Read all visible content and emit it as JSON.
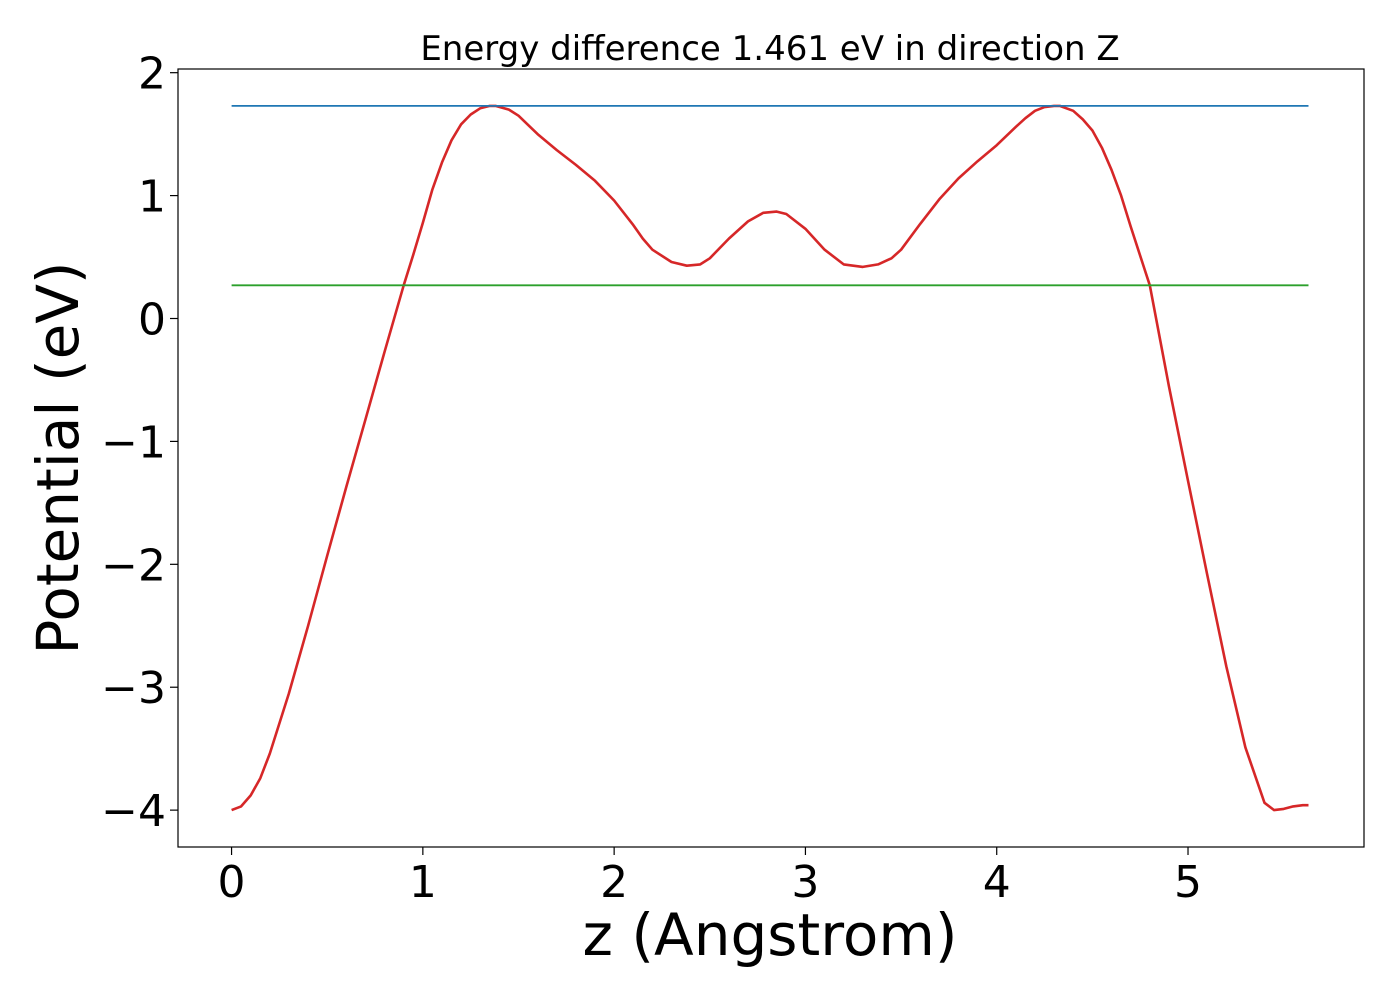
{
  "chart_data": {
    "type": "line",
    "title": "Energy difference 1.461 eV in direction Z",
    "xlabel": "z (Angstrom)",
    "ylabel": "Potential (eV)",
    "xlim": [
      -0.28,
      5.92
    ],
    "ylim": [
      -4.3,
      2.03
    ],
    "xticks": [
      0,
      1,
      2,
      3,
      4,
      5
    ],
    "xtick_labels": [
      "0",
      "1",
      "2",
      "3",
      "4",
      "5"
    ],
    "yticks": [
      -4,
      -3,
      -2,
      -1,
      0,
      1,
      2
    ],
    "ytick_labels": [
      "−4",
      "−3",
      "−2",
      "−1",
      "0",
      "1",
      "2"
    ],
    "grid": false,
    "series": [
      {
        "color": "#d62728",
        "x": [
          0,
          0.05,
          0.1,
          0.15,
          0.2,
          0.3,
          0.4,
          0.5,
          0.6,
          0.7,
          0.8,
          0.9,
          0.95,
          1.0,
          1.05,
          1.1,
          1.15,
          1.2,
          1.25,
          1.3,
          1.35,
          1.38,
          1.45,
          1.5,
          1.6,
          1.7,
          1.8,
          1.9,
          2.0,
          2.1,
          2.15,
          2.2,
          2.3,
          2.38,
          2.45,
          2.5,
          2.6,
          2.7,
          2.78,
          2.85,
          2.9,
          3.0,
          3.1,
          3.2,
          3.3,
          3.38,
          3.45,
          3.5,
          3.6,
          3.7,
          3.8,
          3.9,
          4.0,
          4.1,
          4.15,
          4.2,
          4.25,
          4.3,
          4.33,
          4.4,
          4.45,
          4.5,
          4.55,
          4.6,
          4.65,
          4.7,
          4.8,
          4.9,
          5.0,
          5.1,
          5.2,
          5.3,
          5.4,
          5.45,
          5.5,
          5.55,
          5.6,
          5.63
        ],
        "y": [
          -4.0,
          -3.97,
          -3.88,
          -3.74,
          -3.54,
          -3.05,
          -2.5,
          -1.93,
          -1.37,
          -0.82,
          -0.27,
          0.27,
          0.52,
          0.78,
          1.05,
          1.27,
          1.45,
          1.58,
          1.66,
          1.71,
          1.73,
          1.73,
          1.7,
          1.65,
          1.5,
          1.37,
          1.25,
          1.12,
          0.96,
          0.76,
          0.65,
          0.56,
          0.46,
          0.43,
          0.44,
          0.49,
          0.65,
          0.79,
          0.86,
          0.87,
          0.85,
          0.73,
          0.56,
          0.44,
          0.42,
          0.44,
          0.49,
          0.56,
          0.77,
          0.97,
          1.14,
          1.28,
          1.41,
          1.56,
          1.63,
          1.69,
          1.72,
          1.73,
          1.73,
          1.69,
          1.62,
          1.53,
          1.39,
          1.21,
          1.0,
          0.75,
          0.27,
          -0.55,
          -1.32,
          -2.08,
          -2.83,
          -3.49,
          -3.94,
          -4.0,
          -3.99,
          -3.97,
          -3.96,
          -3.96
        ]
      },
      {
        "color": "#1f77b4",
        "x": [
          0,
          5.63
        ],
        "y": [
          1.73,
          1.73
        ]
      },
      {
        "color": "#2ca02c",
        "x": [
          0,
          5.63
        ],
        "y": [
          0.27,
          0.27
        ]
      }
    ]
  }
}
